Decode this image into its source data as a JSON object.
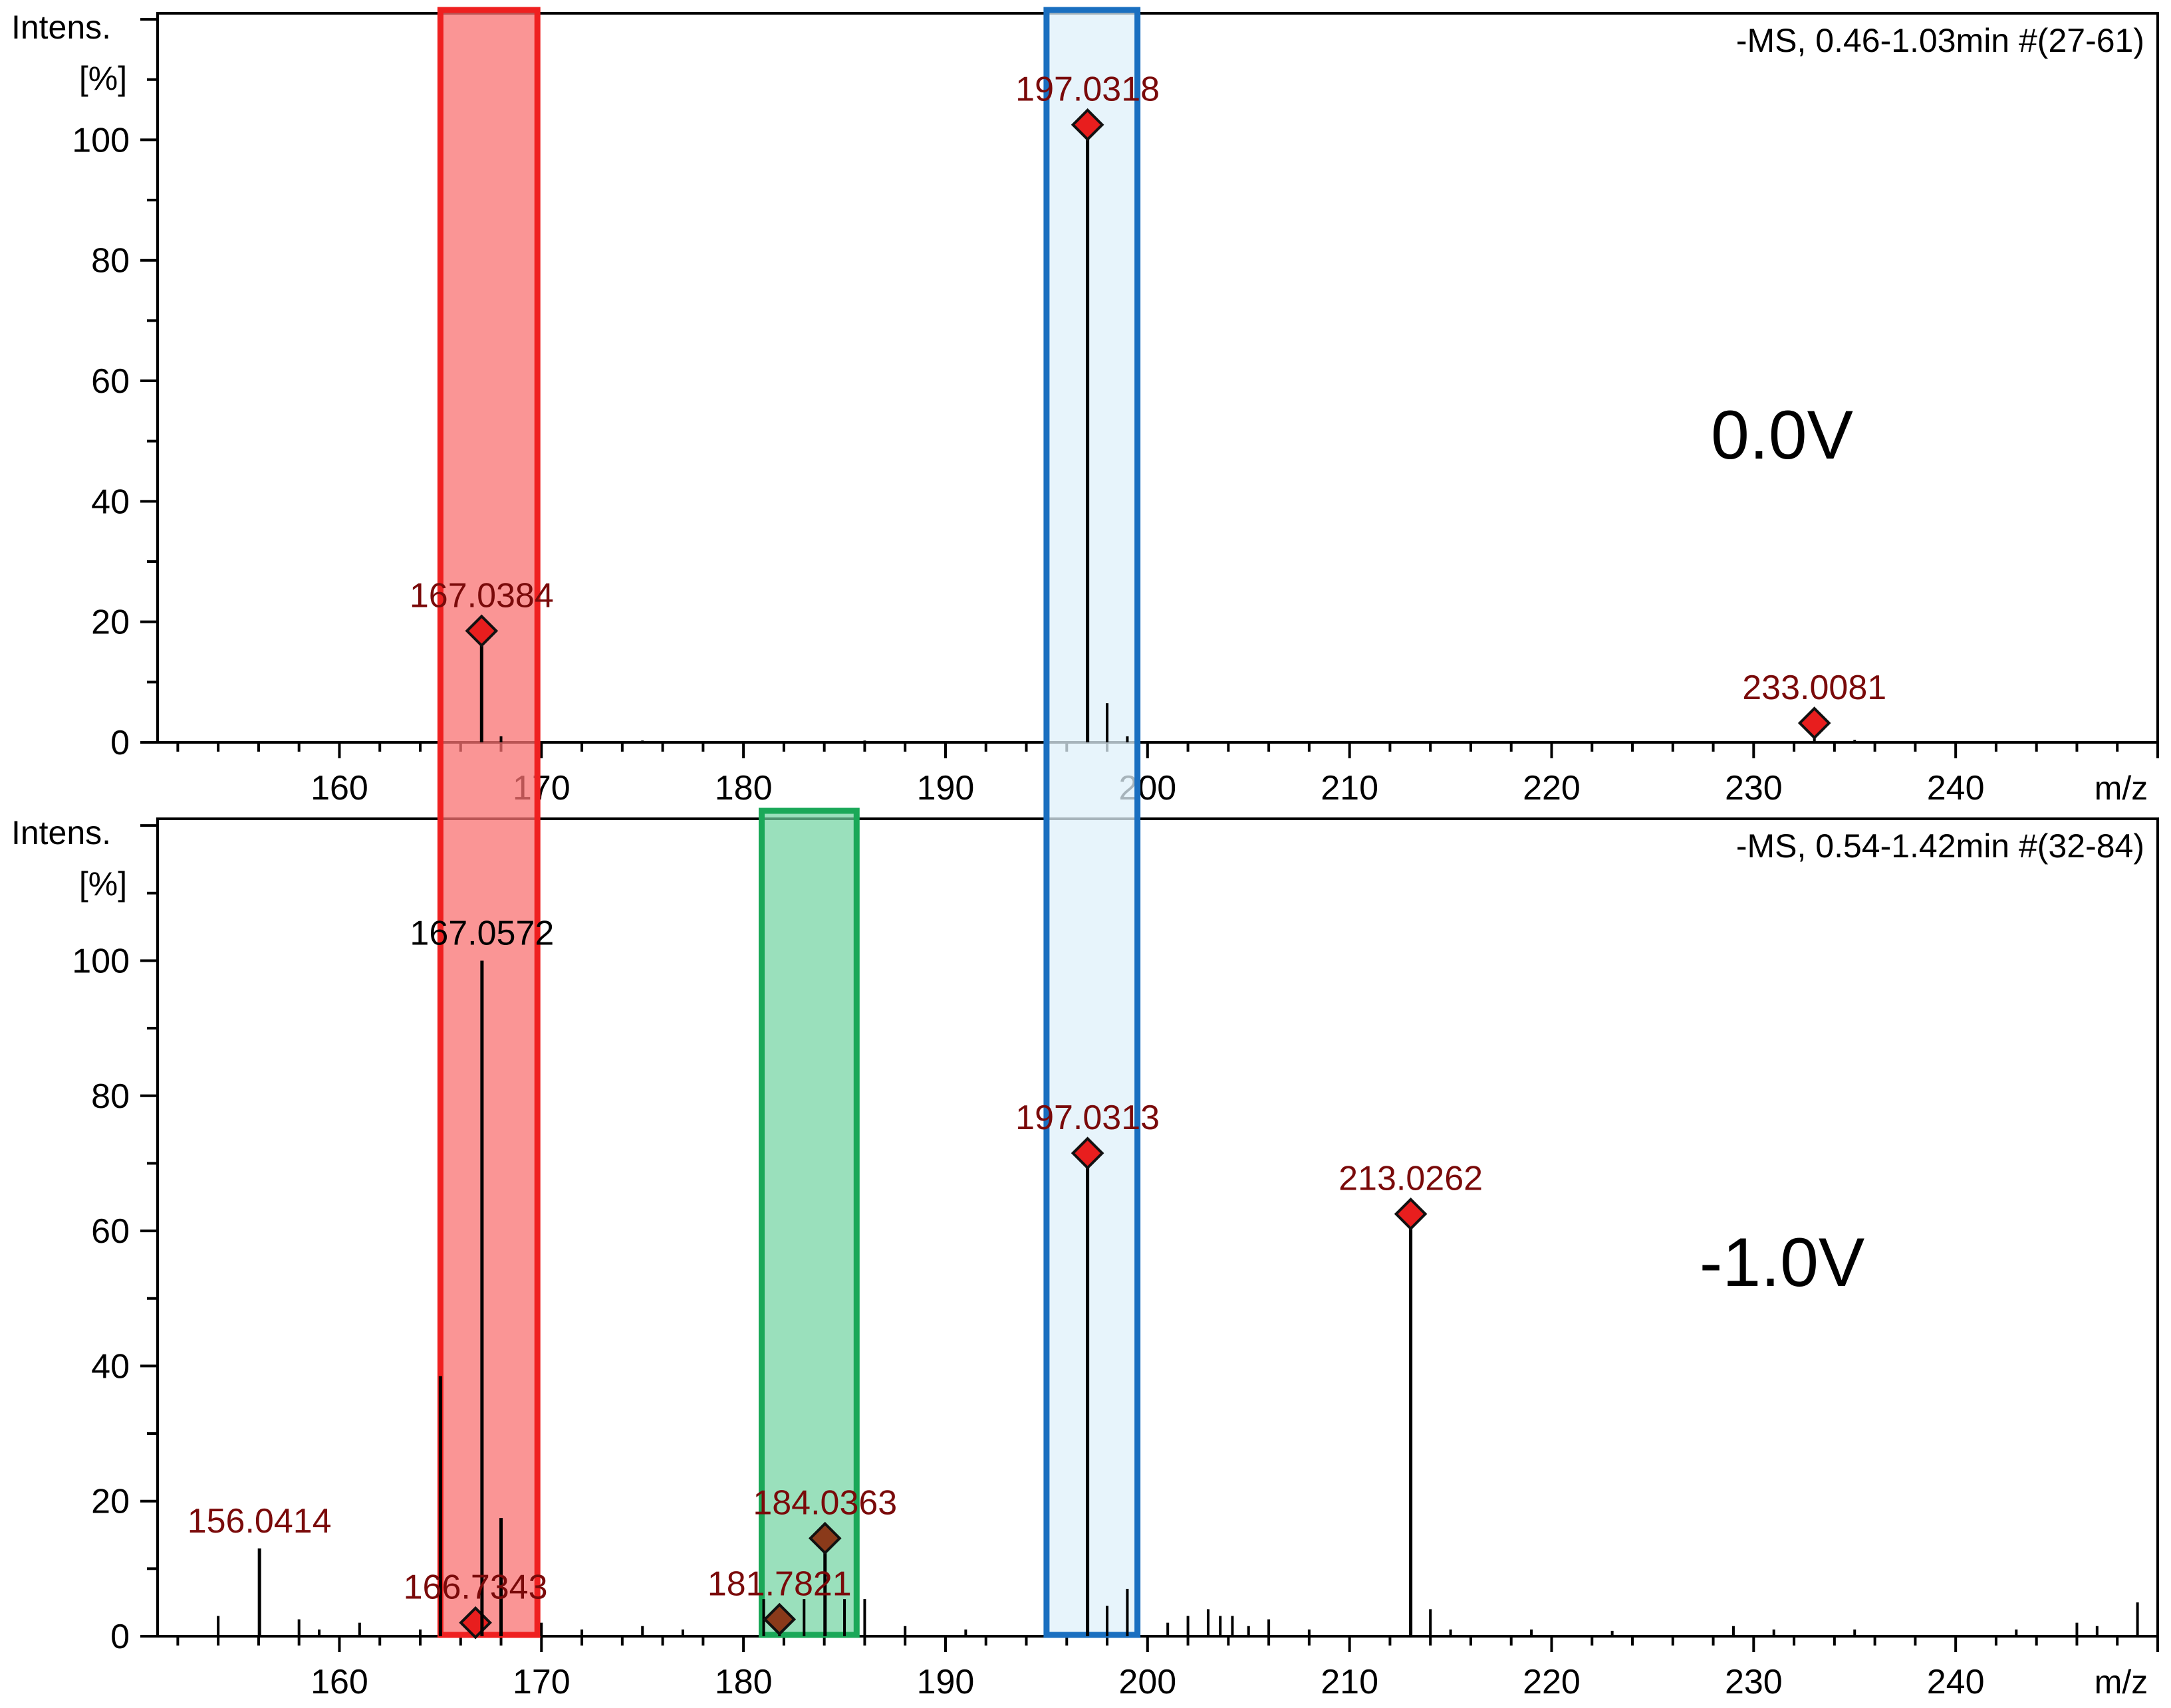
{
  "chart_data": [
    {
      "type": "bar",
      "panel": "top",
      "title": "-MS, 0.46-1.03min #(27-61)",
      "condition_label": "0.0V",
      "ylabel": "Intens.",
      "ylabel_unit": "[%]",
      "xlabel": "m/z",
      "xlim": [
        151,
        250
      ],
      "ylim": [
        0,
        121
      ],
      "x_ticks": [
        160,
        170,
        180,
        190,
        200,
        210,
        220,
        230,
        240
      ],
      "y_ticks": [
        0,
        20,
        40,
        60,
        80,
        100
      ],
      "grid": false,
      "peaks": [
        {
          "mz": 167.0384,
          "intensity": 18.5,
          "label": "167.0384",
          "marker": true,
          "color": "#000000"
        },
        {
          "mz": 168.0,
          "intensity": 1.0,
          "marker": false,
          "color": "#000000"
        },
        {
          "mz": 175.0,
          "intensity": 0.3,
          "marker": false,
          "color": "#000000"
        },
        {
          "mz": 186.0,
          "intensity": 0.3,
          "marker": false,
          "color": "#000000"
        },
        {
          "mz": 197.0318,
          "intensity": 102.5,
          "label": "197.0318",
          "marker": true,
          "color": "#000000"
        },
        {
          "mz": 198.0,
          "intensity": 6.5,
          "marker": false,
          "color": "#000000"
        },
        {
          "mz": 199.0,
          "intensity": 1.0,
          "marker": false,
          "color": "#000000"
        },
        {
          "mz": 233.0081,
          "intensity": 3.2,
          "label": "233.0081",
          "marker": true,
          "color": "#000000"
        },
        {
          "mz": 235.0,
          "intensity": 0.4,
          "marker": false,
          "color": "#000000"
        }
      ]
    },
    {
      "type": "bar",
      "panel": "bottom",
      "title": "-MS, 0.54-1.42min #(32-84)",
      "condition_label": "-1.0V",
      "ylabel": "Intens.",
      "ylabel_unit": "[%]",
      "xlabel": "m/z",
      "xlim": [
        151,
        250
      ],
      "ylim": [
        0,
        121
      ],
      "x_ticks": [
        160,
        170,
        180,
        190,
        200,
        210,
        220,
        230,
        240
      ],
      "y_ticks": [
        0,
        20,
        40,
        60,
        80,
        100
      ],
      "grid": false,
      "peaks": [
        {
          "mz": 154.0,
          "intensity": 3.0,
          "marker": false,
          "color": "#000000"
        },
        {
          "mz": 156.0414,
          "intensity": 13.0,
          "label": "156.0414",
          "marker": false,
          "color": "#000000"
        },
        {
          "mz": 158.0,
          "intensity": 2.5,
          "marker": false,
          "color": "#000000"
        },
        {
          "mz": 159.0,
          "intensity": 1.0,
          "marker": false,
          "color": "#000000"
        },
        {
          "mz": 161.0,
          "intensity": 2.0,
          "marker": false,
          "color": "#000000"
        },
        {
          "mz": 164.0,
          "intensity": 1.0,
          "marker": false,
          "color": "#000000"
        },
        {
          "mz": 165.0,
          "intensity": 38.5,
          "marker": false,
          "color": "#000000"
        },
        {
          "mz": 166.7343,
          "intensity": 2.0,
          "label": "166.7343",
          "marker": true,
          "color": "#000000"
        },
        {
          "mz": 167.0572,
          "intensity": 100.0,
          "label": "167.0572",
          "marker": false,
          "color": "#000000"
        },
        {
          "mz": 168.0,
          "intensity": 17.5,
          "marker": false,
          "color": "#000000"
        },
        {
          "mz": 170.0,
          "intensity": 2.0,
          "marker": false,
          "color": "#000000"
        },
        {
          "mz": 172.0,
          "intensity": 1.0,
          "marker": false,
          "color": "#000000"
        },
        {
          "mz": 175.0,
          "intensity": 1.5,
          "marker": false,
          "color": "#000000"
        },
        {
          "mz": 177.0,
          "intensity": 1.0,
          "marker": false,
          "color": "#000000"
        },
        {
          "mz": 181.0,
          "intensity": 5.5,
          "marker": false,
          "color": "#000000"
        },
        {
          "mz": 181.7821,
          "intensity": 2.5,
          "label": "181.7821",
          "marker": true,
          "color": "#000000"
        },
        {
          "mz": 183.0,
          "intensity": 5.5,
          "marker": false,
          "color": "#000000"
        },
        {
          "mz": 184.0363,
          "intensity": 14.5,
          "label": "184.0363",
          "marker": true,
          "color": "#000000"
        },
        {
          "mz": 185.0,
          "intensity": 5.5,
          "marker": false,
          "color": "#000000"
        },
        {
          "mz": 186.0,
          "intensity": 5.5,
          "marker": false,
          "color": "#000000"
        },
        {
          "mz": 188.0,
          "intensity": 1.5,
          "marker": false,
          "color": "#000000"
        },
        {
          "mz": 191.0,
          "intensity": 1.0,
          "marker": false,
          "color": "#000000"
        },
        {
          "mz": 197.0313,
          "intensity": 71.5,
          "label": "197.0313",
          "marker": true,
          "color": "#000000"
        },
        {
          "mz": 198.0,
          "intensity": 4.5,
          "marker": false,
          "color": "#000000"
        },
        {
          "mz": 199.0,
          "intensity": 7.0,
          "marker": false,
          "color": "#000000"
        },
        {
          "mz": 201.0,
          "intensity": 2.0,
          "marker": false,
          "color": "#000000"
        },
        {
          "mz": 202.0,
          "intensity": 3.0,
          "marker": false,
          "color": "#000000"
        },
        {
          "mz": 203.0,
          "intensity": 4.0,
          "marker": false,
          "color": "#000000"
        },
        {
          "mz": 203.6,
          "intensity": 3.0,
          "marker": false,
          "color": "#000000"
        },
        {
          "mz": 204.2,
          "intensity": 3.0,
          "marker": false,
          "color": "#000000"
        },
        {
          "mz": 205.0,
          "intensity": 1.5,
          "marker": false,
          "color": "#000000"
        },
        {
          "mz": 206.0,
          "intensity": 2.5,
          "marker": false,
          "color": "#000000"
        },
        {
          "mz": 208.0,
          "intensity": 1.0,
          "marker": false,
          "color": "#000000"
        },
        {
          "mz": 213.0262,
          "intensity": 62.5,
          "label": "213.0262",
          "marker": true,
          "color": "#000000"
        },
        {
          "mz": 214.0,
          "intensity": 4.0,
          "marker": false,
          "color": "#000000"
        },
        {
          "mz": 215.0,
          "intensity": 1.0,
          "marker": false,
          "color": "#000000"
        },
        {
          "mz": 219.0,
          "intensity": 1.0,
          "marker": false,
          "color": "#000000"
        },
        {
          "mz": 223.0,
          "intensity": 0.8,
          "marker": false,
          "color": "#000000"
        },
        {
          "mz": 229.0,
          "intensity": 1.5,
          "marker": false,
          "color": "#000000"
        },
        {
          "mz": 231.0,
          "intensity": 1.0,
          "marker": false,
          "color": "#000000"
        },
        {
          "mz": 235.0,
          "intensity": 1.0,
          "marker": false,
          "color": "#000000"
        },
        {
          "mz": 243.0,
          "intensity": 1.0,
          "marker": false,
          "color": "#000000"
        },
        {
          "mz": 246.0,
          "intensity": 2.0,
          "marker": false,
          "color": "#000000"
        },
        {
          "mz": 247.0,
          "intensity": 1.5,
          "marker": false,
          "color": "#000000"
        },
        {
          "mz": 249.0,
          "intensity": 5.0,
          "marker": false,
          "color": "#000000"
        }
      ]
    }
  ],
  "highlight_bands": [
    {
      "name": "red",
      "mz_from": 165.0,
      "mz_to": 169.8,
      "fill": "#f87171",
      "fill_opacity": 0.75,
      "stroke": "#ef2020",
      "span": "both"
    },
    {
      "name": "green",
      "mz_from": 180.9,
      "mz_to": 185.6,
      "fill": "#6fd3a0",
      "fill_opacity": 0.7,
      "stroke": "#1aa858",
      "span": "bottom"
    },
    {
      "name": "blue",
      "mz_from": 195.0,
      "mz_to": 199.5,
      "fill": "#dff0fa",
      "fill_opacity": 0.75,
      "stroke": "#1a6fc0",
      "span": "both"
    }
  ],
  "colors": {
    "peak_label": "#7a0a0a",
    "peak_label_plain": "#000000",
    "marker_fill": "#e81e1e",
    "marker_fill_dark": "#8a3a1a",
    "axis": "#000000"
  }
}
